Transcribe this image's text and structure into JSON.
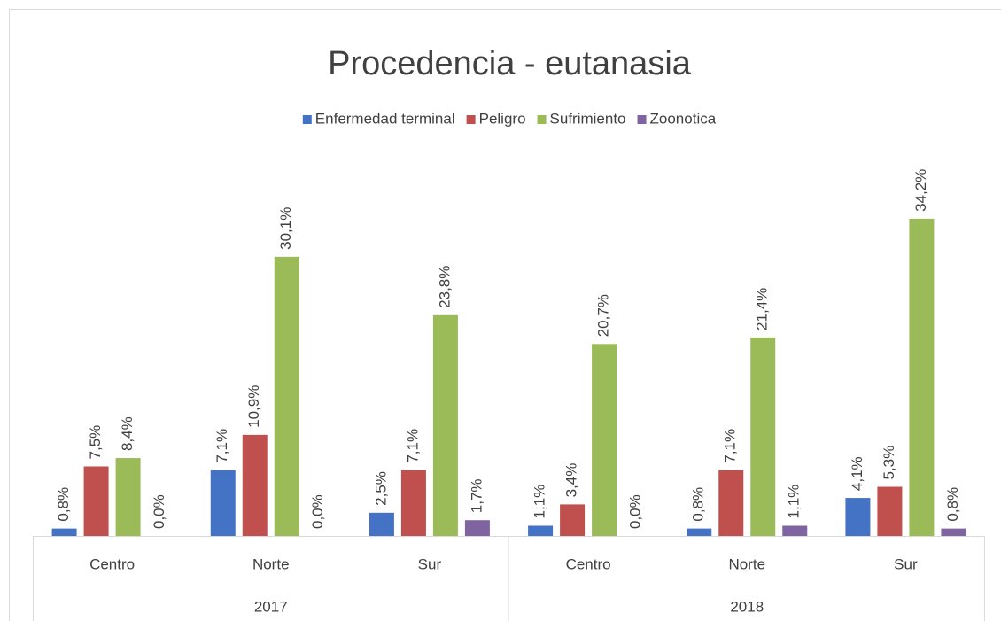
{
  "chart_data": {
    "type": "bar",
    "title": "Procedencia - eutanasia",
    "category_groups": [
      {
        "name": "2017",
        "categories": [
          "Centro",
          "Norte",
          "Sur"
        ]
      },
      {
        "name": "2018",
        "categories": [
          "Centro",
          "Norte",
          "Sur"
        ]
      }
    ],
    "series": [
      {
        "name": "Enfermedad terminal",
        "color": "#4472c4",
        "values": [
          0.8,
          7.1,
          2.5,
          1.1,
          0.8,
          4.1
        ],
        "value_labels": [
          "0,8%",
          "7,1%",
          "2,5%",
          "1,1%",
          "0,8%",
          "4,1%"
        ]
      },
      {
        "name": "Peligro",
        "color": "#c0504d",
        "values": [
          7.5,
          10.9,
          7.1,
          3.4,
          7.1,
          5.3
        ],
        "value_labels": [
          "7,5%",
          "10,9%",
          "7,1%",
          "3,4%",
          "7,1%",
          "5,3%"
        ]
      },
      {
        "name": "Sufrimiento",
        "color": "#9bbb59",
        "values": [
          8.4,
          30.1,
          23.8,
          20.7,
          21.4,
          34.2
        ],
        "value_labels": [
          "8,4%",
          "30,1%",
          "23,8%",
          "20,7%",
          "21,4%",
          "34,2%"
        ]
      },
      {
        "name": "Zoonotica",
        "color": "#8064a2",
        "values": [
          0.0,
          0.0,
          1.7,
          0.0,
          1.1,
          0.8
        ],
        "value_labels": [
          "0,0%",
          "0,0%",
          "1,7%",
          "0,0%",
          "1,1%",
          "0,8%"
        ]
      }
    ],
    "legend": "top"
  }
}
